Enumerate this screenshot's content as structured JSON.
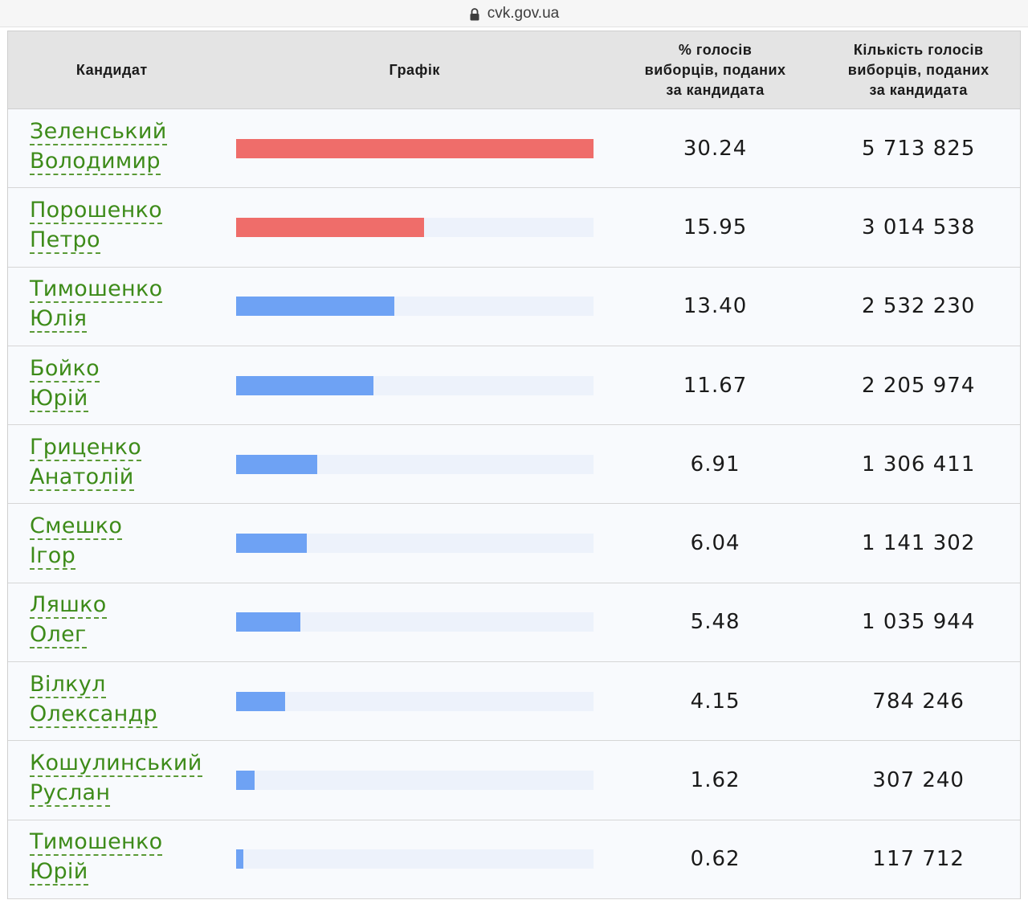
{
  "browser": {
    "url": "cvk.gov.ua",
    "lock_icon": "lock-icon"
  },
  "header": {
    "candidate": "Кандидат",
    "graph": "Графік",
    "percent": [
      "% голосів",
      "виборців, поданих",
      "за кандидата"
    ],
    "votes": [
      "Кількість голосів",
      "виборців, поданих",
      "за кандидата"
    ]
  },
  "colors": {
    "red": "#ef6d6a",
    "blue": "#6ea2f4",
    "track": "#edf2fb",
    "link": "#3d8b19"
  },
  "scale_max": 30.24,
  "rows": [
    {
      "surname": "Зеленський",
      "name": "Володимир",
      "percent": 30.24,
      "percent_text": "30.24",
      "votes": "5 713 825",
      "color": "red"
    },
    {
      "surname": "Порошенко",
      "name": "Петро",
      "percent": 15.95,
      "percent_text": "15.95",
      "votes": "3 014 538",
      "color": "red"
    },
    {
      "surname": "Тимошенко",
      "name": "Юлія",
      "percent": 13.4,
      "percent_text": "13.40",
      "votes": "2 532 230",
      "color": "blue"
    },
    {
      "surname": "Бойко",
      "name": "Юрій",
      "percent": 11.67,
      "percent_text": "11.67",
      "votes": "2 205 974",
      "color": "blue"
    },
    {
      "surname": "Гриценко",
      "name": "Анатолій",
      "percent": 6.91,
      "percent_text": "6.91",
      "votes": "1 306 411",
      "color": "blue"
    },
    {
      "surname": "Смешко",
      "name": "Ігор",
      "percent": 6.04,
      "percent_text": "6.04",
      "votes": "1 141 302",
      "color": "blue"
    },
    {
      "surname": "Ляшко",
      "name": "Олег",
      "percent": 5.48,
      "percent_text": "5.48",
      "votes": "1 035 944",
      "color": "blue"
    },
    {
      "surname": "Вілкул",
      "name": "Олександр",
      "percent": 4.15,
      "percent_text": "4.15",
      "votes": "784 246",
      "color": "blue"
    },
    {
      "surname": "Кошулинський",
      "name": "Руслан",
      "percent": 1.62,
      "percent_text": "1.62",
      "votes": "307 240",
      "color": "blue"
    },
    {
      "surname": "Тимошенко",
      "name": "Юрій",
      "percent": 0.62,
      "percent_text": "0.62",
      "votes": "117 712",
      "color": "blue"
    }
  ]
}
